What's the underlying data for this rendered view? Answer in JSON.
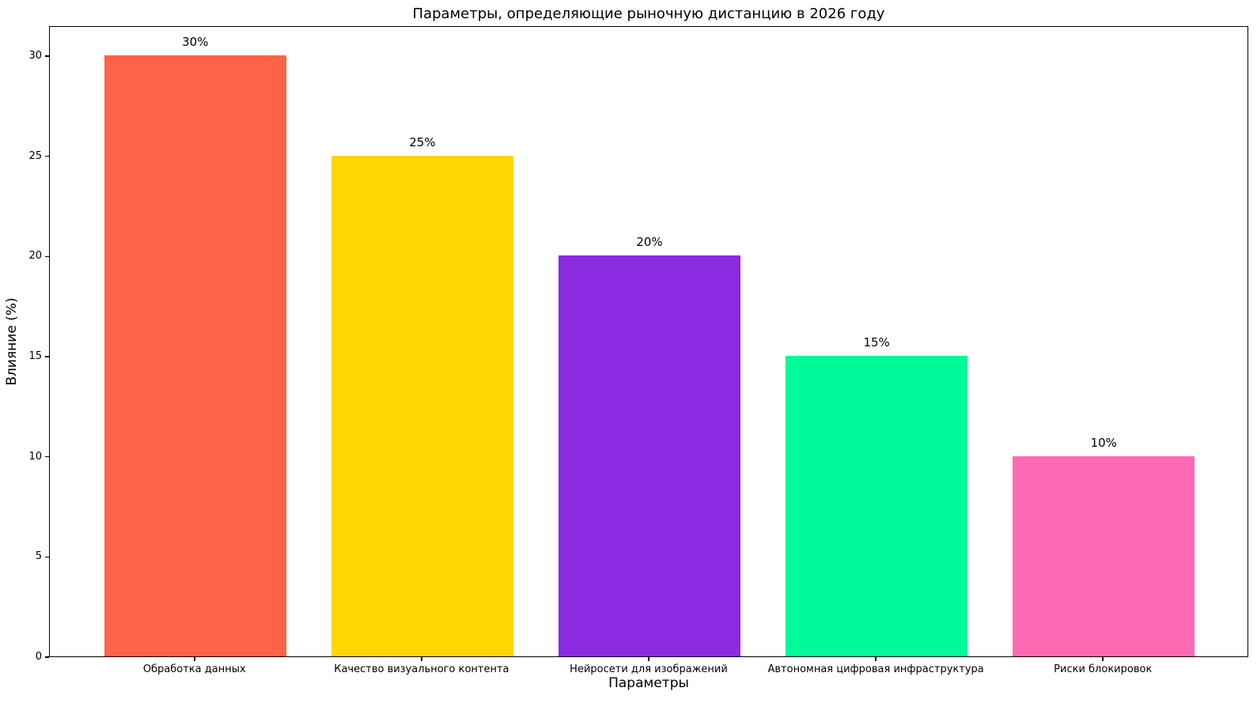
{
  "chart_data": {
    "type": "bar",
    "title": "Параметры, определяющие рыночную дистанцию в 2026 году",
    "xlabel": "Параметры",
    "ylabel": "Влияние (%)",
    "categories": [
      "Обработка данных",
      "Качество визуального контента",
      "Нейросети для изображений",
      "Автономная цифровая инфраструктура",
      "Риски блокировок"
    ],
    "values": [
      30,
      25,
      20,
      15,
      10
    ],
    "bar_labels": [
      "30%",
      "25%",
      "20%",
      "15%",
      "10%"
    ],
    "colors": [
      "#FF6347",
      "#FFD700",
      "#8A2BE2",
      "#00FA9A",
      "#FF69B4"
    ],
    "yticks": [
      0,
      5,
      10,
      15,
      20,
      25,
      30
    ],
    "ylim": [
      0,
      31.5
    ],
    "xlim": [
      -0.64,
      4.64
    ],
    "bar_width": 0.8,
    "grid": false,
    "legend": "none",
    "text_color": "#000000",
    "axis_color": "#000000",
    "background": "#FFFFFF"
  }
}
